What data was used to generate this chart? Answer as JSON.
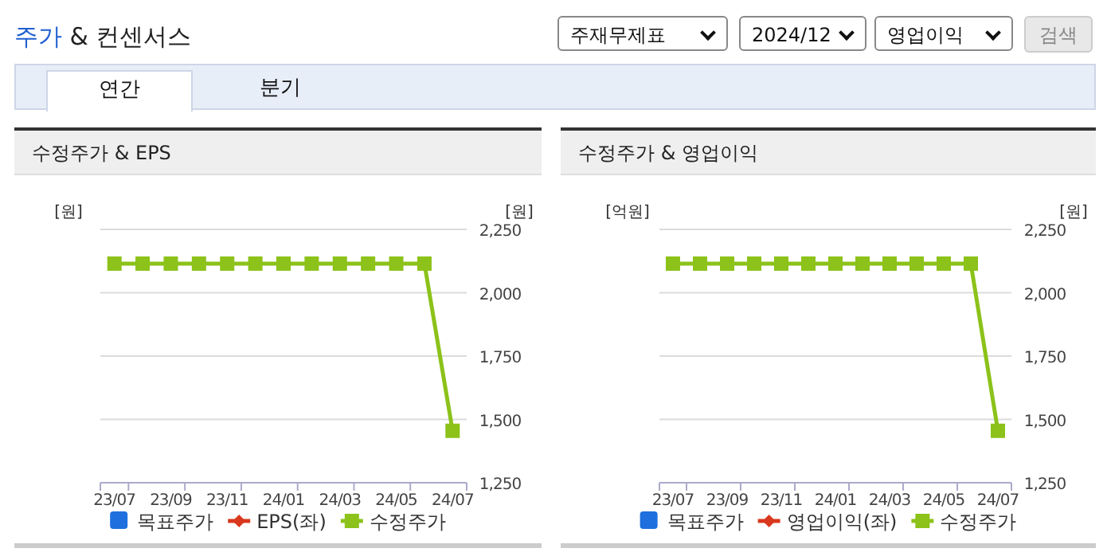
{
  "chart_data": [
    {
      "type": "other",
      "title": "주가 & 컨센서스",
      "annotations": [
        "주재무제표",
        "2024/12",
        "영업이익",
        "검색",
        "연간",
        "분기"
      ]
    },
    {
      "type": "line",
      "title": "수정주가 & EPS",
      "ylabel": "[원]",
      "y2label": "[원]",
      "categories": [
        "23/07",
        null,
        "23/09",
        null,
        "23/11",
        null,
        "24/01",
        null,
        "24/03",
        null,
        "24/05",
        null,
        "24/07"
      ],
      "y2lim": [
        1250,
        2250
      ],
      "y2ticks": [
        {
          "value": 1250,
          "label": "1,250"
        },
        {
          "value": 1500,
          "label": "1,500"
        },
        {
          "value": 1750,
          "label": "1,750"
        },
        {
          "value": 2000,
          "label": "2,000"
        },
        {
          "value": 2250,
          "label": "2,250"
        }
      ],
      "grid": "y",
      "legend": "bottom",
      "series": [
        {
          "name": "목표주가",
          "type": "bar",
          "color": "#1f6fde",
          "values": [
            null,
            null,
            null,
            null,
            null,
            null,
            null,
            null,
            null,
            null,
            null,
            null,
            null
          ]
        },
        {
          "name": "EPS(좌)",
          "color": "#d9381e",
          "marker": "diamond",
          "values": [
            null,
            null,
            null,
            null,
            null,
            null,
            null,
            null,
            null,
            null,
            null,
            null,
            null
          ]
        },
        {
          "name": "수정주가",
          "color": "#8cc21a",
          "marker": "square",
          "axis": "y2",
          "values": [
            2115,
            2115,
            2115,
            2115,
            2115,
            2115,
            2115,
            2115,
            2115,
            2115,
            2115,
            2115,
            1455
          ]
        }
      ]
    },
    {
      "type": "line",
      "title": "수정주가 & 영업이익",
      "ylabel": "[억원]",
      "y2label": "[원]",
      "categories": [
        "23/07",
        null,
        "23/09",
        null,
        "23/11",
        null,
        "24/01",
        null,
        "24/03",
        null,
        "24/05",
        null,
        "24/07"
      ],
      "y2lim": [
        1250,
        2250
      ],
      "y2ticks": [
        {
          "value": 1250,
          "label": "1,250"
        },
        {
          "value": 1500,
          "label": "1,500"
        },
        {
          "value": 1750,
          "label": "1,750"
        },
        {
          "value": 2000,
          "label": "2,000"
        },
        {
          "value": 2250,
          "label": "2,250"
        }
      ],
      "grid": "y",
      "legend": "bottom",
      "series": [
        {
          "name": "목표주가",
          "type": "bar",
          "color": "#1f6fde",
          "values": [
            null,
            null,
            null,
            null,
            null,
            null,
            null,
            null,
            null,
            null,
            null,
            null,
            null
          ]
        },
        {
          "name": "영업이익(좌)",
          "color": "#d9381e",
          "marker": "diamond",
          "values": [
            null,
            null,
            null,
            null,
            null,
            null,
            null,
            null,
            null,
            null,
            null,
            null,
            null
          ]
        },
        {
          "name": "수정주가",
          "color": "#8cc21a",
          "marker": "square",
          "axis": "y2",
          "values": [
            2115,
            2115,
            2115,
            2115,
            2115,
            2115,
            2115,
            2115,
            2115,
            2115,
            2115,
            2115,
            1455
          ]
        }
      ]
    }
  ]
}
